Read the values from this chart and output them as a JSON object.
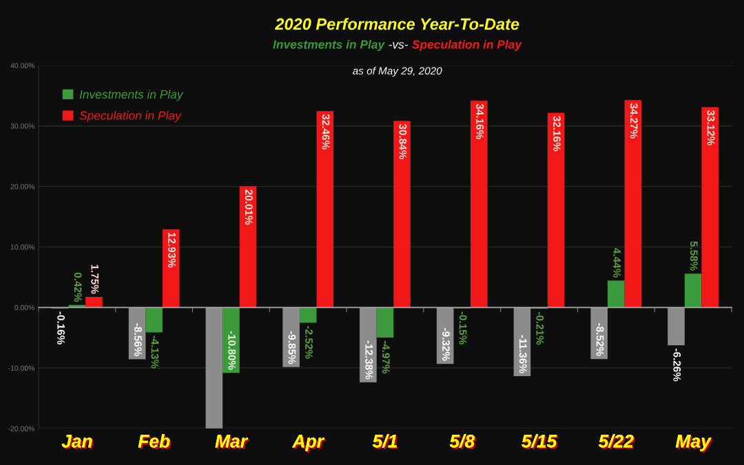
{
  "chart_data": {
    "type": "bar",
    "title": "2020 Performance Year-To-Date",
    "subtitle": "Investments in Play -vs- Speculation in Play",
    "annotations": [
      "as of May 29, 2020"
    ],
    "categories": [
      "Jan",
      "Feb",
      "Mar",
      "Apr",
      "5/1",
      "5/8",
      "5/15",
      "5/22",
      "May"
    ],
    "series": [
      {
        "color": "#8c8c8c",
        "values": [
          -0.16,
          -8.56,
          -20.0,
          -9.85,
          -12.38,
          -9.32,
          -11.36,
          -8.52,
          -6.26
        ],
        "value_labels": [
          "-0.16%",
          "-8.56%",
          null,
          "-9.85%",
          "-12.38%",
          "-9.32%",
          "-11.36%",
          "-8.52%",
          "-6.26%"
        ]
      },
      {
        "name": "Investments in Play",
        "color": "#3a9a3c",
        "values": [
          0.42,
          -4.13,
          -10.8,
          -2.52,
          -4.97,
          -0.15,
          -0.21,
          4.44,
          5.58
        ],
        "value_labels": [
          "0.42%",
          "-4.13%",
          "-10.80%",
          "-2.52%",
          "-4.97%",
          "-0.15%",
          "-0.21%",
          "4.44%",
          "5.58%"
        ]
      },
      {
        "name": "Speculation in Play",
        "color": "#f01818",
        "values": [
          1.75,
          12.93,
          20.01,
          32.46,
          30.84,
          34.16,
          32.16,
          34.27,
          33.12
        ],
        "value_labels": [
          "1.75%",
          "12.93%",
          "20.01%",
          "32.46%",
          "30.84%",
          "34.16%",
          "32.16%",
          "34.27%",
          "33.12%"
        ]
      }
    ],
    "ylim": [
      -20,
      40
    ],
    "yticks": [
      {
        "value": -20,
        "label": "-20.00%"
      },
      {
        "value": -10,
        "label": "-10.00%"
      },
      {
        "value": 0,
        "label": "0.00%"
      },
      {
        "value": 10,
        "label": "10.00%"
      },
      {
        "value": 20,
        "label": "20.00%"
      },
      {
        "value": 30,
        "label": "30.00%"
      },
      {
        "value": 40,
        "label": "40.00%"
      }
    ],
    "grid": "y",
    "legend": "top left"
  }
}
